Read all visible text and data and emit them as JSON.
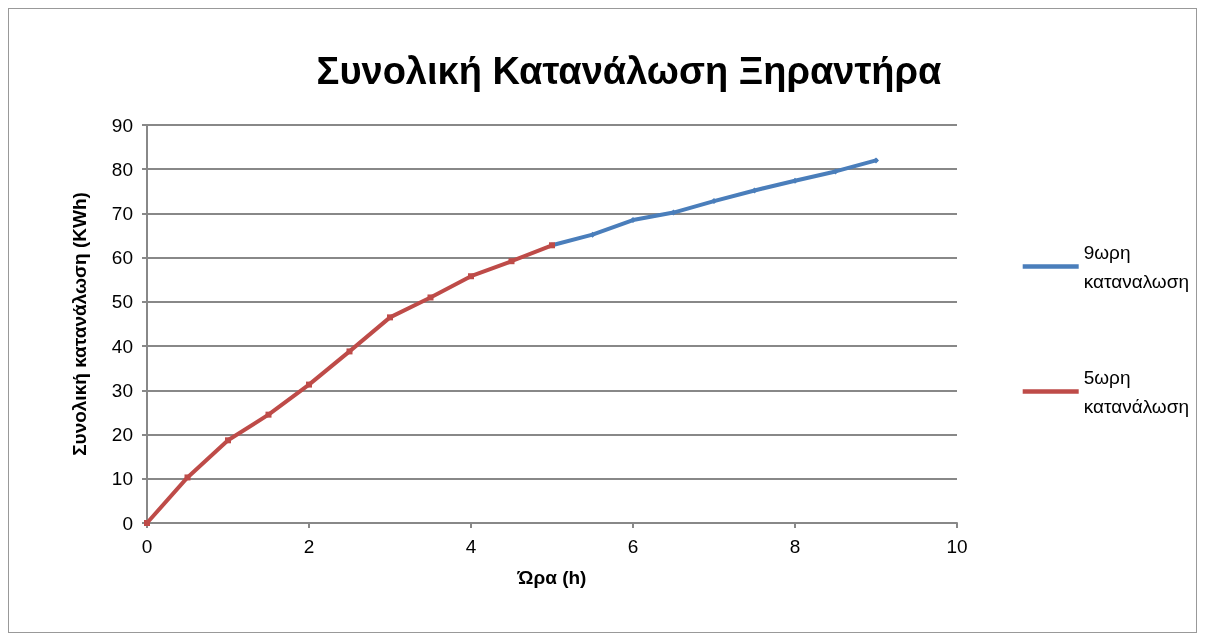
{
  "chart_data": {
    "type": "line",
    "title": "Συνολική Κατανάλωση Ξηραντήρα",
    "xlabel": "Ώρα (h)",
    "ylabel": "Συνολική κατανάλωση (KWh)",
    "xlim": [
      0,
      10
    ],
    "xticks": [
      0,
      2,
      4,
      6,
      8,
      10
    ],
    "ylim": [
      0,
      90
    ],
    "yticks": [
      0,
      10,
      20,
      30,
      40,
      50,
      60,
      70,
      80,
      90
    ],
    "grid": "y",
    "legend": "right",
    "series": [
      {
        "name": "9ωρη καταναλωση",
        "color": "#4a7ebb",
        "marker": "diamond",
        "x": [
          5,
          5.5,
          6,
          6.5,
          7,
          7.5,
          8,
          8.5,
          9
        ],
        "values": [
          62.8,
          65.2,
          68.5,
          70.2,
          72.8,
          75.2,
          77.4,
          79.5,
          82
        ]
      },
      {
        "name": "5ωρη κατανάλωση",
        "color": "#be4b48",
        "marker": "square",
        "x": [
          0,
          0.5,
          1,
          1.5,
          2,
          2.5,
          3,
          3.5,
          4,
          4.5,
          5
        ],
        "values": [
          0,
          10.3,
          18.7,
          24.5,
          31.3,
          38.8,
          46.5,
          51,
          55.8,
          59.2,
          62.8
        ]
      }
    ]
  }
}
